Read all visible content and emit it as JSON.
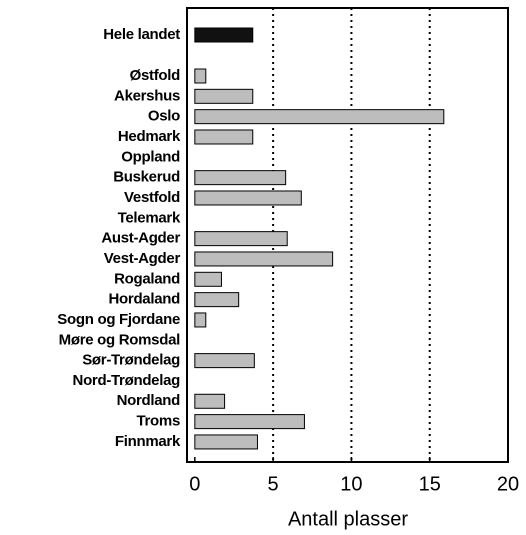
{
  "chart_data": {
    "type": "hbar",
    "xlabel": "Antall plasser",
    "categories": [
      "Hele landet",
      null,
      "Østfold",
      "Akershus",
      "Oslo",
      "Hedmark",
      "Oppland",
      "Buskerud",
      "Vestfold",
      "Telemark",
      "Aust-Agder",
      "Vest-Agder",
      "Rogaland",
      "Hordaland",
      "Sogn og Fjordane",
      "Møre og Romsdal",
      "Sør-Trøndelag",
      "Nord-Trøndelag",
      "Nordland",
      "Troms",
      "Finnmark"
    ],
    "values": [
      3.7,
      null,
      0.7,
      3.7,
      15.9,
      3.7,
      null,
      5.8,
      6.8,
      null,
      5.9,
      8.8,
      1.7,
      2.8,
      0.7,
      null,
      3.8,
      null,
      1.9,
      7.0,
      4.0
    ],
    "colors": [
      "#111111",
      null,
      "#bdbdbd",
      "#bdbdbd",
      "#bdbdbd",
      "#bdbdbd",
      "#bdbdbd",
      "#bdbdbd",
      "#bdbdbd",
      "#bdbdbd",
      "#bdbdbd",
      "#bdbdbd",
      "#bdbdbd",
      "#bdbdbd",
      "#bdbdbd",
      "#bdbdbd",
      "#bdbdbd",
      "#bdbdbd",
      "#bdbdbd",
      "#bdbdbd",
      "#bdbdbd"
    ],
    "xlim": [
      -0.5,
      20
    ],
    "xticks": [
      0,
      5,
      10,
      15,
      20
    ],
    "grid": true
  }
}
